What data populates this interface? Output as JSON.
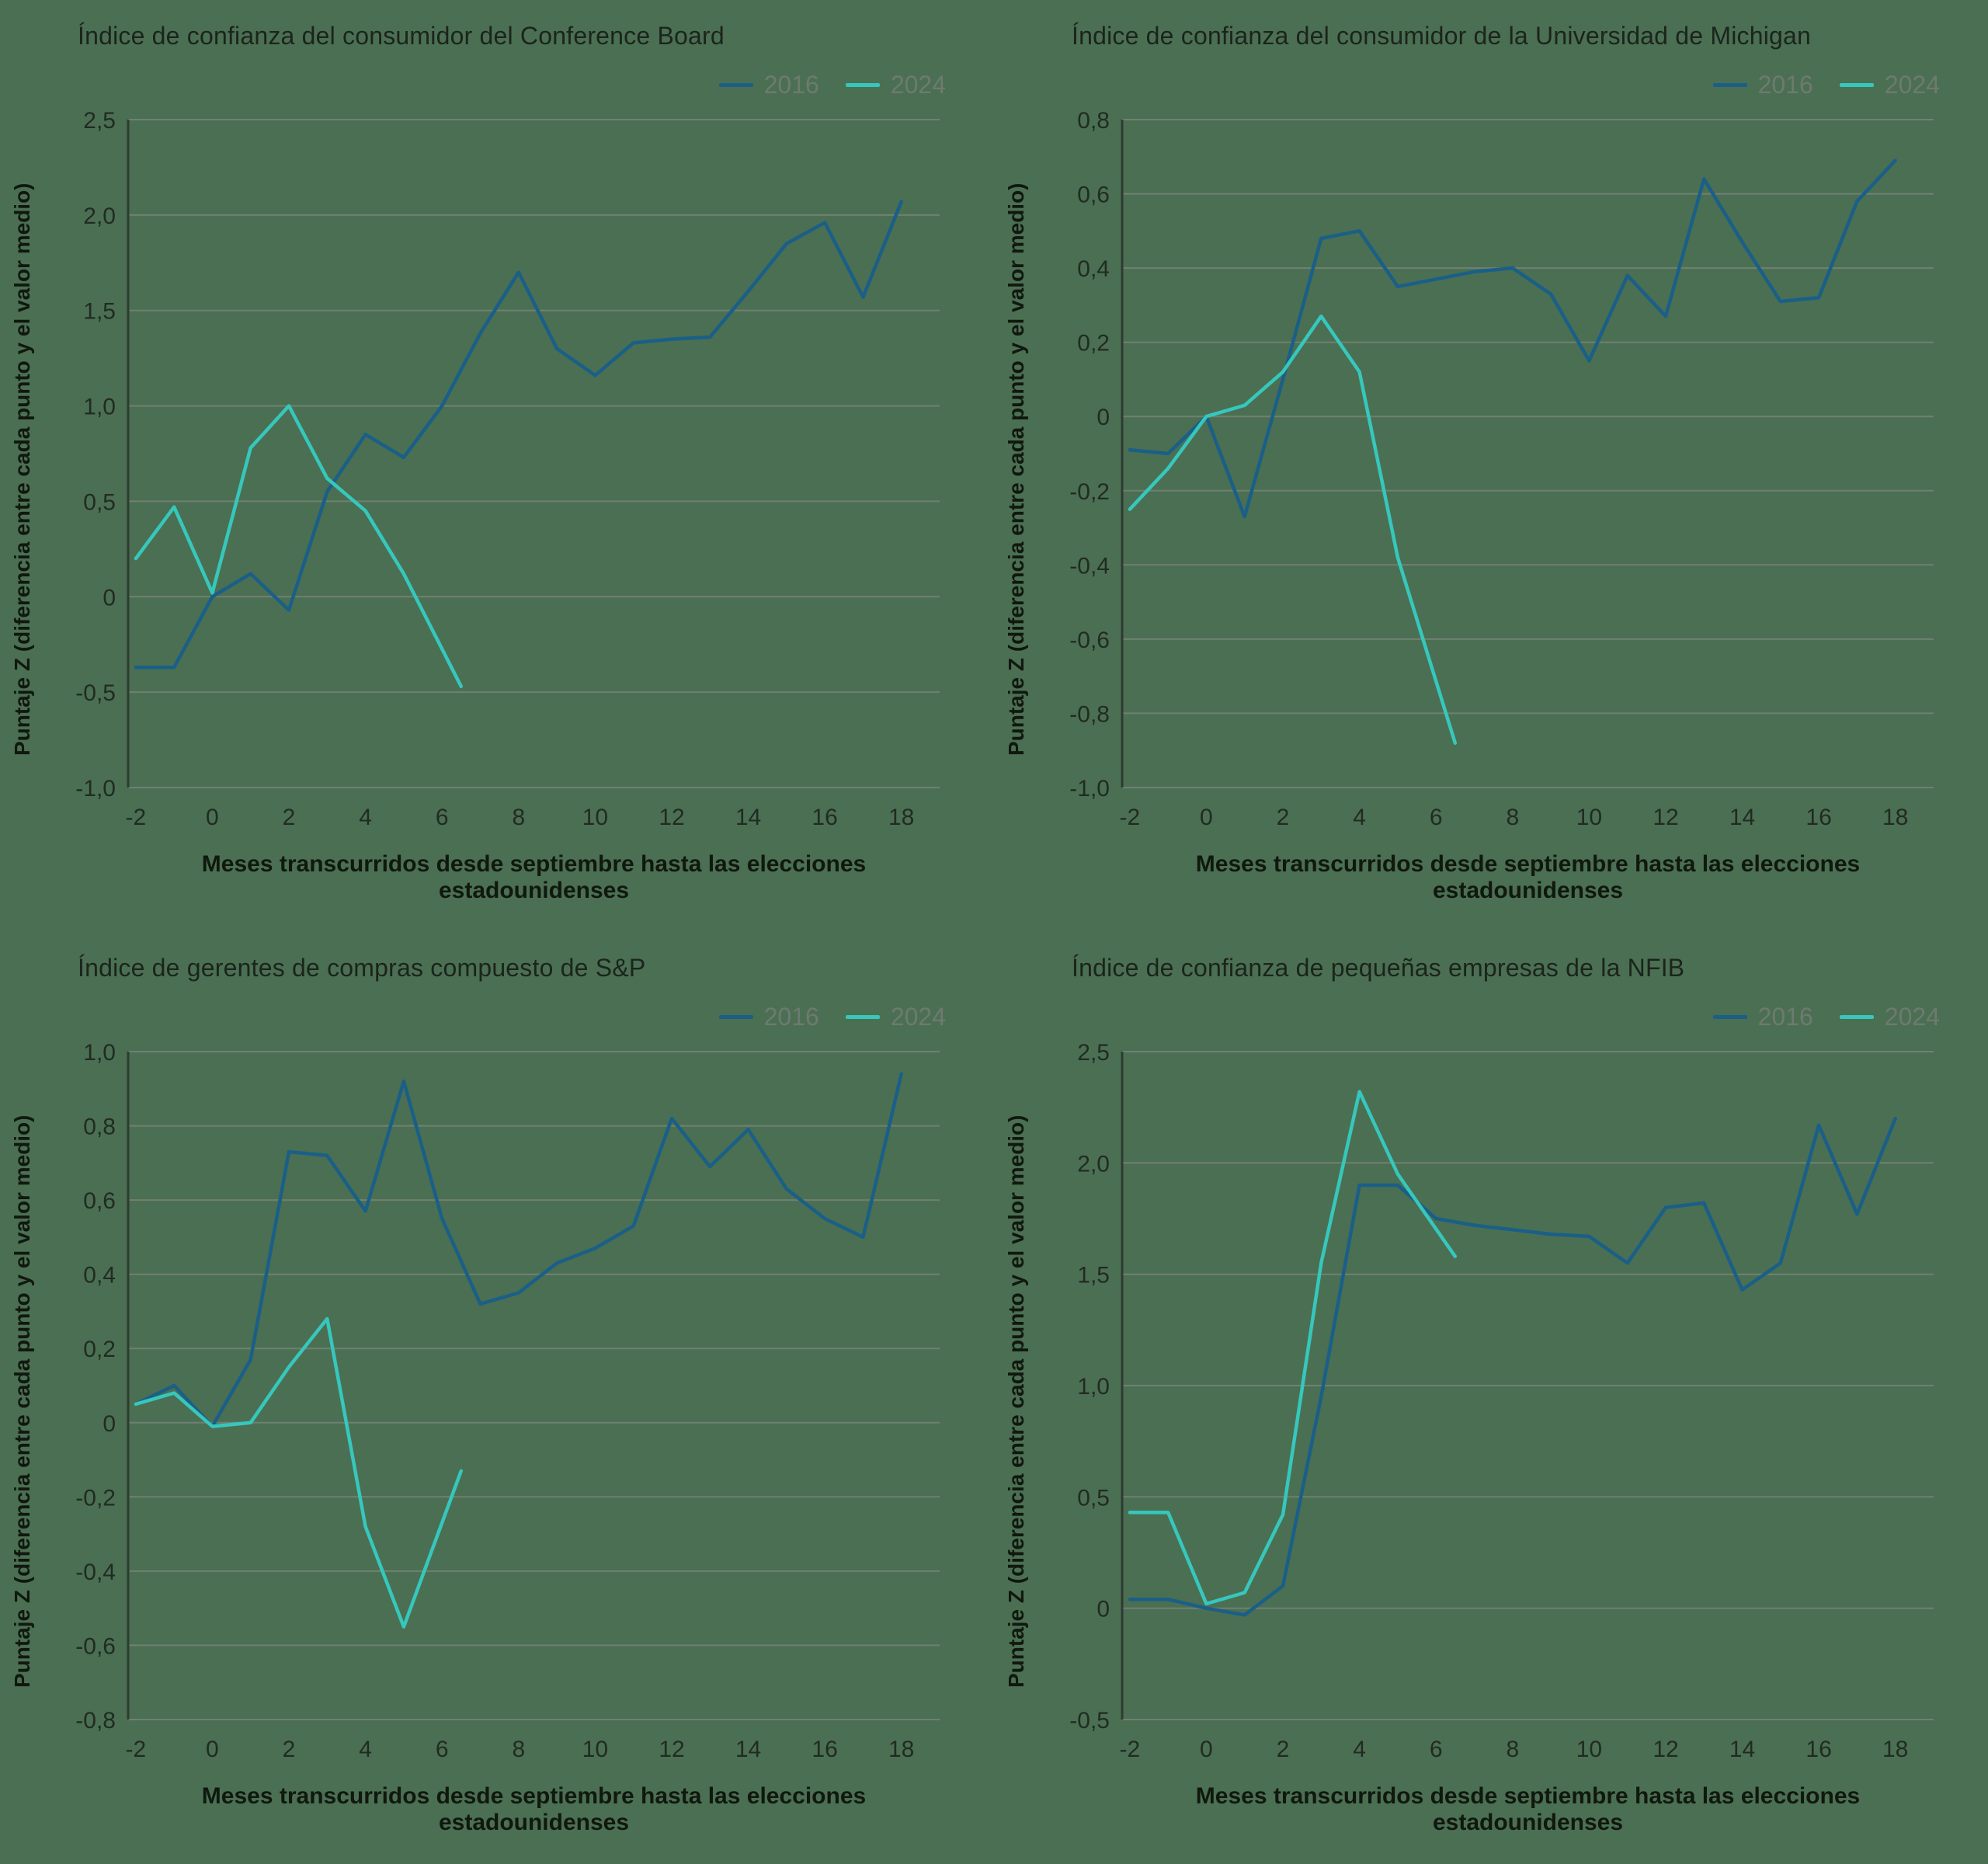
{
  "colors": {
    "background": "#4b6f52",
    "series_2016": "#1a5f88",
    "series_2024": "#36c7bd",
    "gridline": "#708073",
    "axis_line": "#2e3b31",
    "title_text": "#1b241d",
    "tick_text": "#212b23",
    "label_text": "#10180f",
    "legend_text": "#6e7a70"
  },
  "shared": {
    "xlim": [
      -2.2,
      19.0
    ],
    "xticks": [
      -2,
      0,
      2,
      4,
      6,
      8,
      10,
      12,
      14,
      16,
      18
    ],
    "xtick_labels": [
      "-2",
      "0",
      "2",
      "4",
      "6",
      "8",
      "10",
      "12",
      "14",
      "16",
      "18"
    ],
    "ylabel": "Puntaje Z (diferencia entre cada punto y el valor medio)",
    "xlabel": "Meses transcurridos desde septiembre hasta las elecciones estadounidenses",
    "series_labels": [
      "2016",
      "2024"
    ]
  },
  "chart_data": [
    {
      "type": "line",
      "title": "Índice de confianza del consumidor del Conference Board",
      "xlabel": "Meses transcurridos desde septiembre hasta las elecciones estadounidenses",
      "ylabel": "Puntaje Z (diferencia entre cada punto y el valor medio)",
      "legend_position": "top-right",
      "grid": true,
      "ylim": [
        -1.0,
        2.5
      ],
      "yticks": [
        2.5,
        2.0,
        1.5,
        1.0,
        0.5,
        0,
        -0.5,
        -1.0
      ],
      "ytick_labels": [
        "2,5",
        "2,0",
        "1,5",
        "1,0",
        "0,5",
        "0",
        "-0,5",
        "-1,0"
      ],
      "series": [
        {
          "name": "2016",
          "x": [
            -2,
            -1,
            0,
            1,
            2,
            3,
            4,
            5,
            6,
            7,
            8,
            9,
            10,
            11,
            12,
            13,
            14,
            15,
            16,
            17,
            18
          ],
          "y": [
            -0.37,
            -0.37,
            0.0,
            0.12,
            -0.07,
            0.55,
            0.85,
            0.73,
            1.0,
            1.38,
            1.7,
            1.3,
            1.16,
            1.33,
            1.35,
            1.36,
            1.6,
            1.85,
            1.96,
            1.57,
            2.07
          ]
        },
        {
          "name": "2024",
          "x": [
            -2,
            -1,
            0,
            1,
            2,
            3,
            4,
            5,
            6.5
          ],
          "y": [
            0.2,
            0.47,
            0.02,
            0.78,
            1.0,
            0.62,
            0.45,
            0.12,
            -0.47
          ]
        }
      ]
    },
    {
      "type": "line",
      "title": "Índice de confianza del consumidor de la Universidad de Michigan",
      "xlabel": "Meses transcurridos desde septiembre hasta las elecciones estadounidenses",
      "ylabel": "Puntaje Z (diferencia entre cada punto y el valor medio)",
      "legend_position": "top-right",
      "grid": true,
      "ylim": [
        -1.0,
        0.8
      ],
      "yticks": [
        0.8,
        0.6,
        0.4,
        0.2,
        0,
        -0.2,
        -0.4,
        -0.6,
        -0.8,
        -1.0
      ],
      "ytick_labels": [
        "0,8",
        "0,6",
        "0,4",
        "0,2",
        "0",
        "-0,2",
        "-0,4",
        "-0,6",
        "-0,8",
        "-1,0"
      ],
      "series": [
        {
          "name": "2016",
          "x": [
            -2,
            -1,
            0,
            1,
            2,
            3,
            4,
            5,
            6,
            7,
            8,
            9,
            10,
            11,
            12,
            13,
            14,
            15,
            16,
            17,
            18
          ],
          "y": [
            -0.09,
            -0.1,
            0.0,
            -0.27,
            0.1,
            0.48,
            0.5,
            0.35,
            0.37,
            0.39,
            0.4,
            0.33,
            0.15,
            0.38,
            0.27,
            0.64,
            0.47,
            0.31,
            0.32,
            0.58,
            0.69
          ]
        },
        {
          "name": "2024",
          "x": [
            -2,
            -1,
            0,
            1,
            2,
            3,
            4,
            5,
            6.5
          ],
          "y": [
            -0.25,
            -0.14,
            0.0,
            0.03,
            0.12,
            0.27,
            0.12,
            -0.38,
            -0.88
          ]
        }
      ]
    },
    {
      "type": "line",
      "title": "Índice de gerentes de compras compuesto de S&P",
      "xlabel": "Meses transcurridos desde septiembre hasta las elecciones estadounidenses",
      "ylabel": "Puntaje Z (diferencia entre cada punto y el valor medio)",
      "legend_position": "top-right",
      "grid": true,
      "ylim": [
        -0.8,
        1.0
      ],
      "yticks": [
        1.0,
        0.8,
        0.6,
        0.4,
        0.2,
        0,
        -0.2,
        -0.4,
        -0.6,
        -0.8
      ],
      "ytick_labels": [
        "1,0",
        "0,8",
        "0,6",
        "0,4",
        "0,2",
        "0",
        "-0,2",
        "-0,4",
        "-0,6",
        "-0,8"
      ],
      "series": [
        {
          "name": "2016",
          "x": [
            -2,
            -1,
            0,
            1,
            2,
            3,
            4,
            5,
            6,
            7,
            8,
            9,
            10,
            11,
            12,
            13,
            14,
            15,
            16,
            17,
            18
          ],
          "y": [
            0.05,
            0.1,
            -0.01,
            0.17,
            0.73,
            0.72,
            0.57,
            0.92,
            0.55,
            0.32,
            0.35,
            0.43,
            0.47,
            0.53,
            0.82,
            0.69,
            0.79,
            0.63,
            0.55,
            0.5,
            0.94
          ]
        },
        {
          "name": "2024",
          "x": [
            -2,
            -1,
            0,
            1,
            2,
            3,
            4,
            5,
            6.5
          ],
          "y": [
            0.05,
            0.08,
            -0.01,
            0.0,
            0.15,
            0.28,
            -0.28,
            -0.55,
            -0.13
          ]
        }
      ]
    },
    {
      "type": "line",
      "title": "Índice de confianza de pequeñas empresas de la NFIB",
      "xlabel": "Meses transcurridos desde septiembre hasta las elecciones estadounidenses",
      "ylabel": "Puntaje Z (diferencia entre cada punto y el valor medio)",
      "legend_position": "top-right",
      "grid": true,
      "ylim": [
        -0.5,
        2.5
      ],
      "yticks": [
        2.5,
        2.0,
        1.5,
        1.0,
        0.5,
        0,
        -0.5
      ],
      "ytick_labels": [
        "2,5",
        "2,0",
        "1,5",
        "1,0",
        "0,5",
        "0",
        "-0,5"
      ],
      "series": [
        {
          "name": "2016",
          "x": [
            -2,
            -1,
            0,
            1,
            2,
            3,
            4,
            5,
            6,
            7,
            8,
            9,
            10,
            11,
            12,
            13,
            14,
            15,
            16,
            17,
            18
          ],
          "y": [
            0.04,
            0.04,
            0.0,
            -0.03,
            0.1,
            0.95,
            1.9,
            1.9,
            1.75,
            1.72,
            1.7,
            1.68,
            1.67,
            1.55,
            1.8,
            1.82,
            1.43,
            1.55,
            2.17,
            1.77,
            2.2
          ]
        },
        {
          "name": "2024",
          "x": [
            -2,
            -1,
            0,
            1,
            2,
            3,
            4,
            5,
            6.5
          ],
          "y": [
            0.43,
            0.43,
            0.02,
            0.07,
            0.42,
            1.55,
            2.32,
            1.95,
            1.58
          ]
        }
      ]
    }
  ]
}
